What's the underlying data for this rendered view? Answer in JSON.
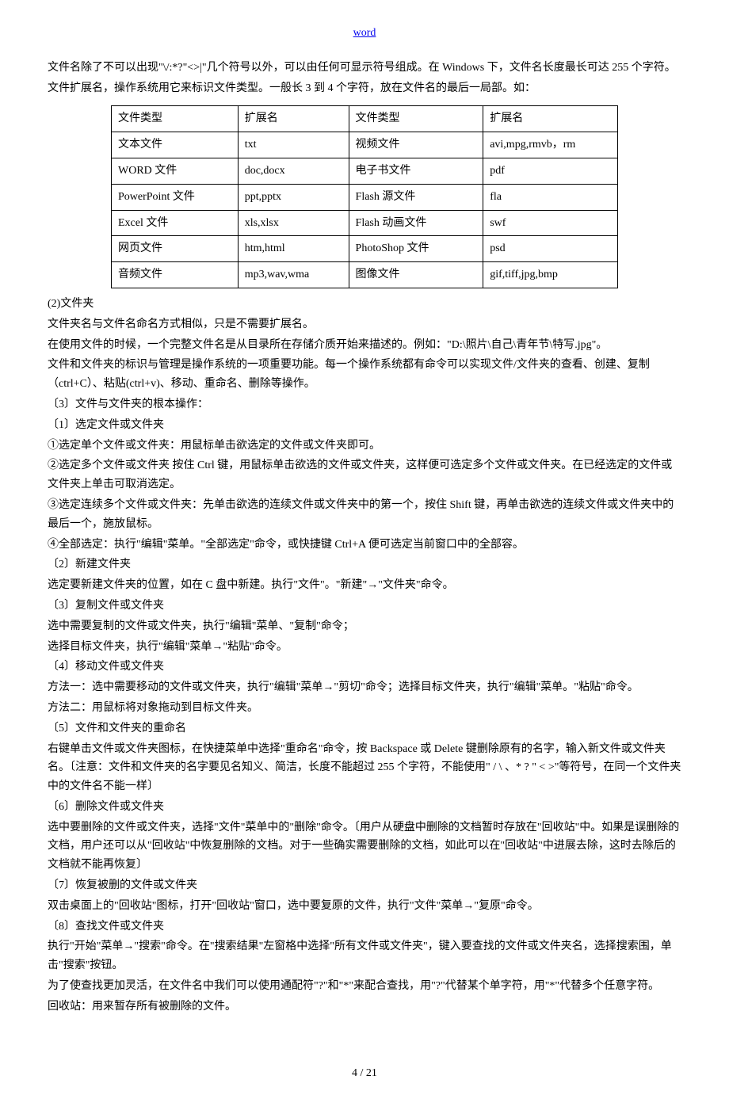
{
  "header": {
    "link": "word"
  },
  "intro": {
    "p1": "文件名除了不可以出现\"\\/:*?\"<>|\"几个符号以外，可以由任何可显示符号组成。在 Windows 下，文件名长度最长可达 255 个字符。",
    "p2": "文件扩展名，操作系统用它来标识文件类型。一般长 3 到 4 个字符，放在文件名的最后一局部。如："
  },
  "table": {
    "headers": [
      "文件类型",
      "扩展名",
      "文件类型",
      "扩展名"
    ],
    "rows": [
      [
        "文本文件",
        "txt",
        "视频文件",
        "avi,mpg,rmvb，rm"
      ],
      [
        "WORD 文件",
        "doc,docx",
        "电子书文件",
        "pdf"
      ],
      [
        "PowerPoint 文件",
        "ppt,pptx",
        "Flash 源文件",
        "fla"
      ],
      [
        "Excel 文件",
        "xls,xlsx",
        "Flash 动画文件",
        "swf"
      ],
      [
        "网页文件",
        "htm,html",
        "PhotoShop 文件",
        "psd"
      ],
      [
        "音频文件",
        "mp3,wav,wma",
        "图像文件",
        "gif,tiff,jpg,bmp"
      ]
    ]
  },
  "body": {
    "p1": "(2)文件夹",
    "p2": "文件夹名与文件名命名方式相似，只是不需要扩展名。",
    "p3": "在使用文件的时候，一个完整文件名是从目录所在存储介质开始来描述的。例如：\"D:\\照片\\自己\\青年节\\特写.jpg\"。",
    "p4": "文件和文件夹的标识与管理是操作系统的一项重要功能。每一个操作系统都有命令可以实现文件/文件夹的查看、创建、复制（ctrl+C）、粘贴(ctrl+v)、移动、重命名、删除等操作。",
    "p5": "〔3〕文件与文件夹的根本操作：",
    "p6": "〔1〕选定文件或文件夹",
    "p7": "①选定单个文件或文件夹：用鼠标单击欲选定的文件或文件夹即可。",
    "p8": "②选定多个文件或文件夹 按住 Ctrl 键，用鼠标单击欲选的文件或文件夹，这样便可选定多个文件或文件夹。在已经选定的文件或文件夹上单击可取消选定。",
    "p9": "③选定连续多个文件或文件夹：先单击欲选的连续文件或文件夹中的第一个，按住 Shift 键，再单击欲选的连续文件或文件夹中的最后一个，施放鼠标。",
    "p10": "④全部选定：执行\"编辑\"菜单。\"全部选定\"命令，或快捷键 Ctrl+A 便可选定当前窗口中的全部容。",
    "p11": "〔2〕新建文件夹",
    "p12": "选定要新建文件夹的位置，如在 C 盘中新建。执行\"文件\"。\"新建\"→\"文件夹\"命令。",
    "p13": "〔3〕复制文件或文件夹",
    "p14": "选中需要复制的文件或文件夹，执行\"编辑\"菜单、\"复制\"命令；",
    "p15": "选择目标文件夹，执行\"编辑\"菜单→\"粘贴\"命令。",
    "p16": "〔4〕移动文件或文件夹",
    "p17": "方法一：选中需要移动的文件或文件夹，执行\"编辑\"菜单→\"剪切\"命令；选择目标文件夹，执行\"编辑\"菜单。\"粘贴\"命令。",
    "p18": "方法二：用鼠标将对象拖动到目标文件夹。",
    "p19": "〔5〕文件和文件夹的重命名",
    "p20": "右键单击文件或文件夹图标，在快捷菜单中选择\"重命名\"命令，按 Backspace 或 Delete 键删除原有的名字，输入新文件或文件夹名。〔注意：文件和文件夹的名字要见名知义、简洁，长度不能超过 255 个字符，不能使用\" / \\ 、* ? \" < >\"等符号，在同一个文件夹中的文件名不能一样〕",
    "p21": "〔6〕删除文件或文件夹",
    "p22": "选中要删除的文件或文件夹，选择\"文件\"菜单中的\"删除\"命令。〔用户从硬盘中删除的文档暂时存放在\"回收站\"中。如果是误删除的文档，用户还可以从\"回收站\"中恢复删除的文档。对于一些确实需要删除的文档，如此可以在\"回收站\"中进展去除，这时去除后的文档就不能再恢复〕",
    "p23": "〔7〕恢复被删的文件或文件夹",
    "p24": "双击桌面上的\"回收站\"图标，打开\"回收站\"窗口，选中要复原的文件，执行\"文件\"菜单→\"复原\"命令。",
    "p25": "〔8〕查找文件或文件夹",
    "p26": "执行\"开始\"菜单→\"搜索\"命令。在\"搜索结果\"左窗格中选择\"所有文件或文件夹\"，键入要查找的文件或文件夹名，选择搜索围，单击\"搜索\"按钮。",
    "p27": "为了使查找更加灵活，在文件名中我们可以使用通配符\"?\"和\"*\"来配合查找，用\"?\"代替某个单字符，用\"*\"代替多个任意字符。",
    "p28": "回收站：用来暂存所有被删除的文件。"
  },
  "footer": {
    "page": "4 / 21"
  }
}
